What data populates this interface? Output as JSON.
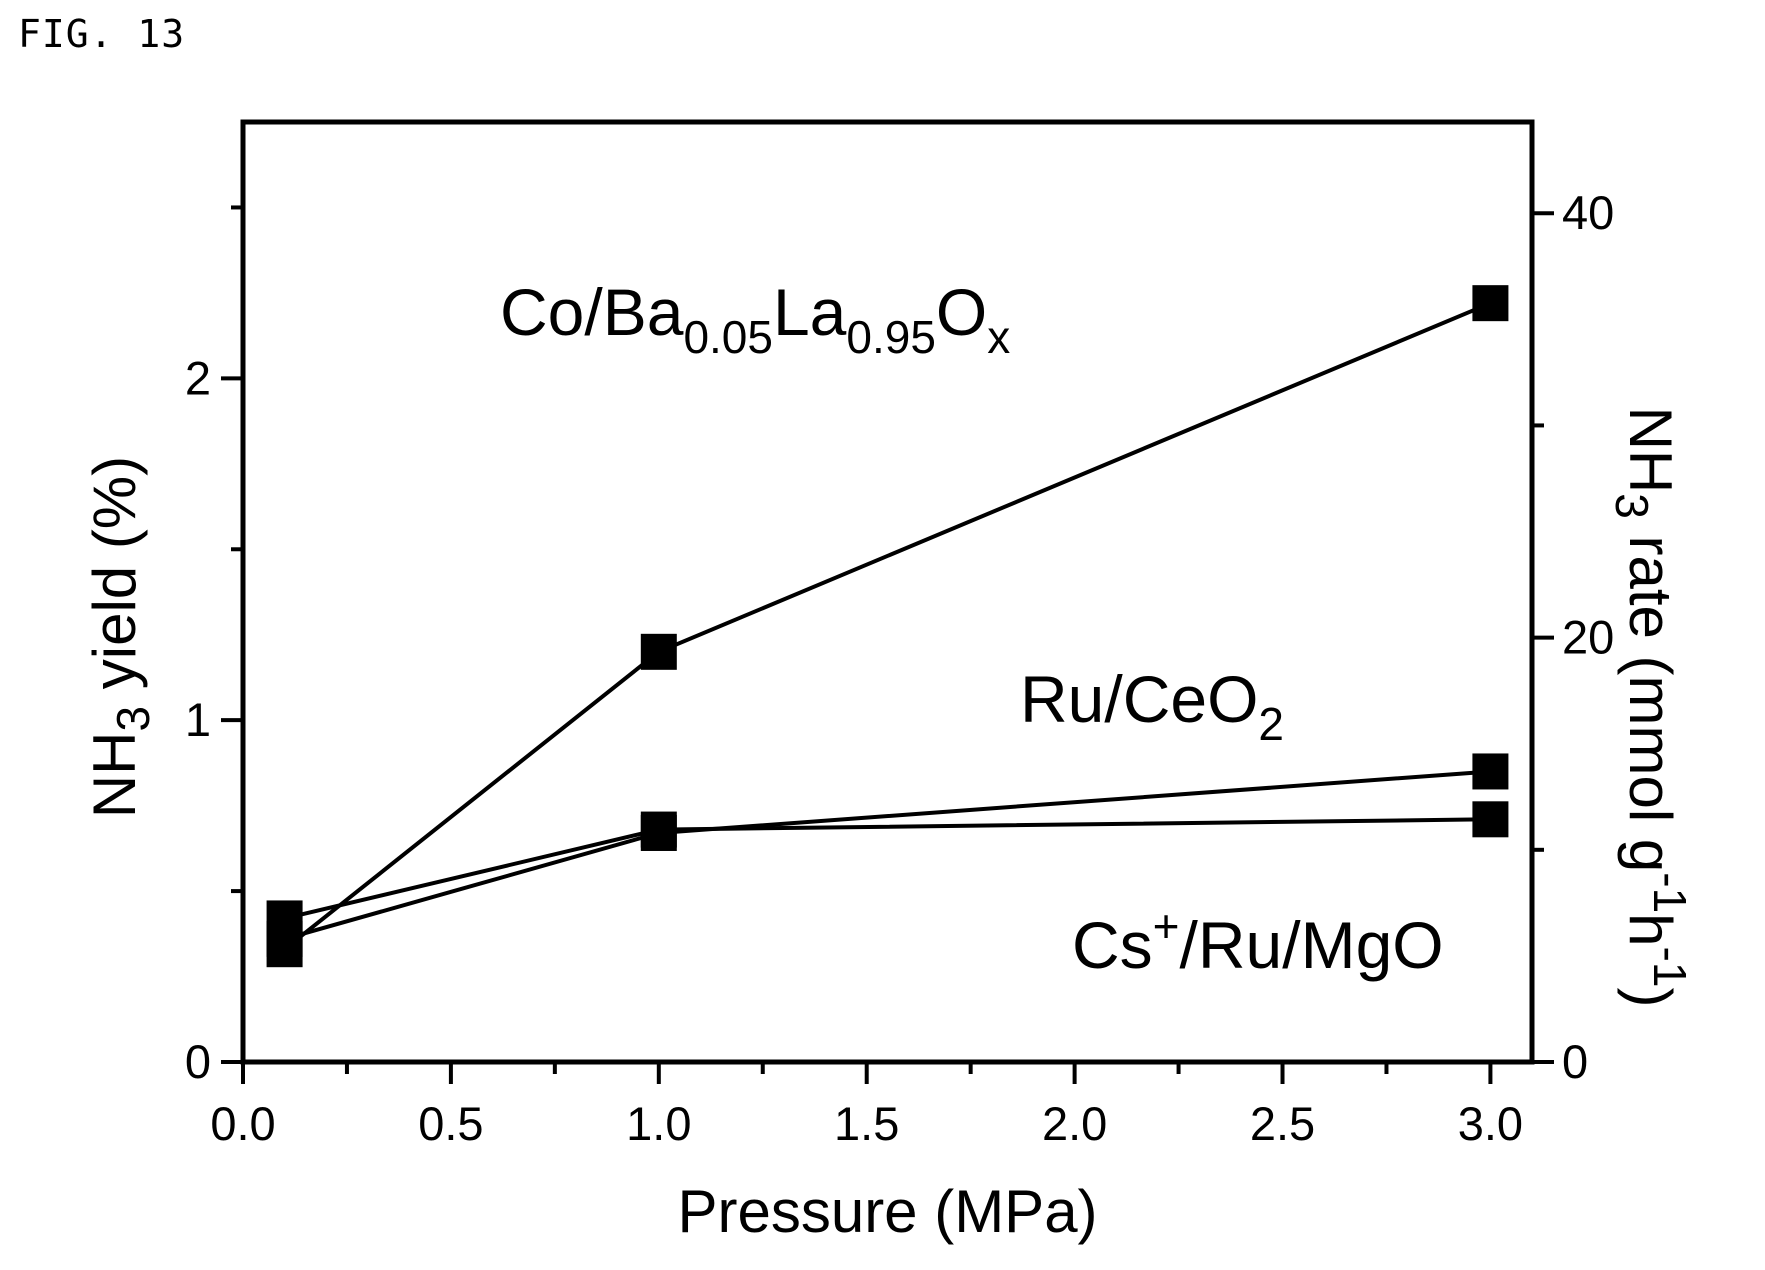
{
  "figure_label": "FIG. 13",
  "chart_data": {
    "type": "line",
    "xlabel": "Pressure (MPa)",
    "ylabel": {
      "prefix": "NH",
      "sub": "3",
      "suffix": " yield (%)"
    },
    "y2label": {
      "prefix": "NH",
      "sub": "3",
      "mid": " rate (mmol g",
      "sup1": "-1",
      "mid2": "h",
      "sup2": "-1",
      "suffix": ")"
    },
    "xlim": [
      0.0,
      3.1
    ],
    "ylim": [
      0,
      2.75
    ],
    "y2lim": [
      0,
      44.3
    ],
    "x_ticks": [
      "0.0",
      "0.5",
      "1.0",
      "1.5",
      "2.0",
      "2.5",
      "3.0"
    ],
    "y_ticks": [
      "0",
      "1",
      "2"
    ],
    "y2_ticks": [
      "0",
      "20",
      "40"
    ],
    "marker": "square",
    "series": [
      {
        "name": "Co/Ba0.05La0.95Ox",
        "label_parts": [
          {
            "t": "Co/Ba",
            "s": ""
          },
          {
            "t": "0.05",
            "s": "sub"
          },
          {
            "t": "La",
            "s": ""
          },
          {
            "t": "0.95",
            "s": "sub"
          },
          {
            "t": "O",
            "s": ""
          },
          {
            "t": "x",
            "s": "sub"
          }
        ],
        "x": [
          0.1,
          1.0,
          3.0
        ],
        "y": [
          0.33,
          1.2,
          2.22
        ]
      },
      {
        "name": "Ru/CeO2",
        "label_parts": [
          {
            "t": "Ru/CeO",
            "s": ""
          },
          {
            "t": "2",
            "s": "sub"
          }
        ],
        "x": [
          0.1,
          1.0,
          3.0
        ],
        "y": [
          0.36,
          0.67,
          0.85
        ]
      },
      {
        "name": "Cs+/Ru/MgO",
        "label_parts": [
          {
            "t": "Cs",
            "s": ""
          },
          {
            "t": "+",
            "s": "sup"
          },
          {
            "t": "/Ru/MgO",
            "s": ""
          }
        ],
        "x": [
          0.1,
          1.0,
          3.0
        ],
        "y": [
          0.42,
          0.68,
          0.71
        ]
      }
    ]
  }
}
